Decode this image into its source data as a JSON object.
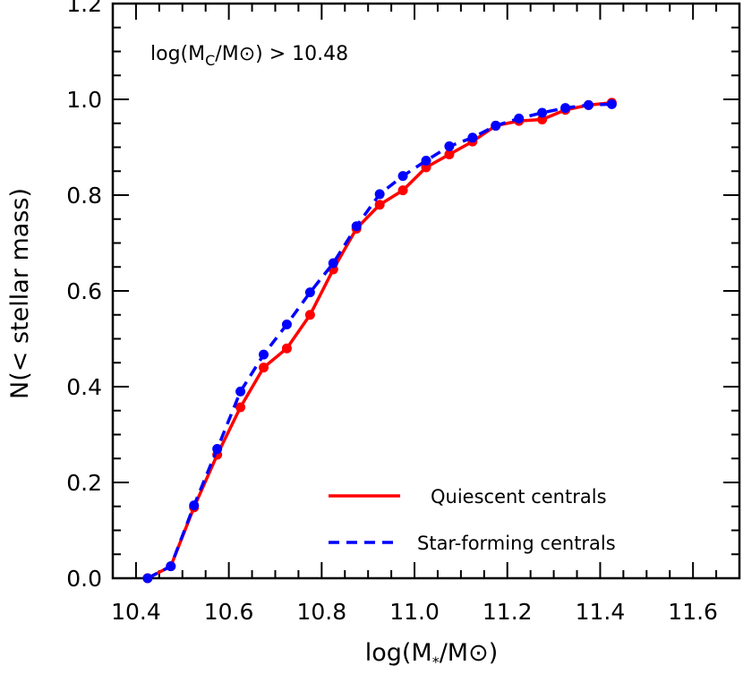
{
  "chart_data": {
    "type": "line",
    "annotation": {
      "prefix": "log(M",
      "sub": "C",
      "mid": "/M",
      "suffix": ") > 10.48"
    },
    "xlabel": {
      "prefix": "log(M",
      "sub": "*",
      "mid": "/M",
      "suffix": ")"
    },
    "ylabel": "N(< stellar mass)",
    "xlim": [
      10.35,
      11.7
    ],
    "ylim": [
      0.0,
      1.2
    ],
    "x_ticks": [
      "10.4",
      "10.6",
      "10.8",
      "11.0",
      "11.2",
      "11.4",
      "11.6"
    ],
    "y_ticks": [
      "0.0",
      "0.2",
      "0.4",
      "0.6",
      "0.8",
      "1.0",
      "1.2"
    ],
    "legend_position": "bottom-right",
    "series": [
      {
        "name": "Quiescent centrals",
        "color": "#ff0000",
        "line_style": "solid",
        "x": [
          10.425,
          10.475,
          10.525,
          10.575,
          10.625,
          10.675,
          10.725,
          10.775,
          10.825,
          10.875,
          10.925,
          10.975,
          11.025,
          11.075,
          11.125,
          11.175,
          11.225,
          11.275,
          11.325,
          11.375,
          11.425
        ],
        "y": [
          0.0,
          0.025,
          0.148,
          0.258,
          0.357,
          0.44,
          0.48,
          0.55,
          0.645,
          0.73,
          0.78,
          0.81,
          0.858,
          0.885,
          0.912,
          0.945,
          0.955,
          0.958,
          0.978,
          0.988,
          0.993
        ]
      },
      {
        "name": "Star-forming centrals",
        "color": "#0000ff",
        "line_style": "dashed",
        "x": [
          10.425,
          10.475,
          10.525,
          10.575,
          10.625,
          10.675,
          10.725,
          10.775,
          10.825,
          10.875,
          10.925,
          10.975,
          11.025,
          11.075,
          11.125,
          11.175,
          11.225,
          11.275,
          11.325,
          11.375,
          11.425
        ],
        "y": [
          0.0,
          0.025,
          0.152,
          0.27,
          0.39,
          0.467,
          0.53,
          0.597,
          0.658,
          0.735,
          0.802,
          0.84,
          0.872,
          0.902,
          0.92,
          0.945,
          0.96,
          0.972,
          0.982,
          0.988,
          0.99
        ]
      }
    ]
  }
}
